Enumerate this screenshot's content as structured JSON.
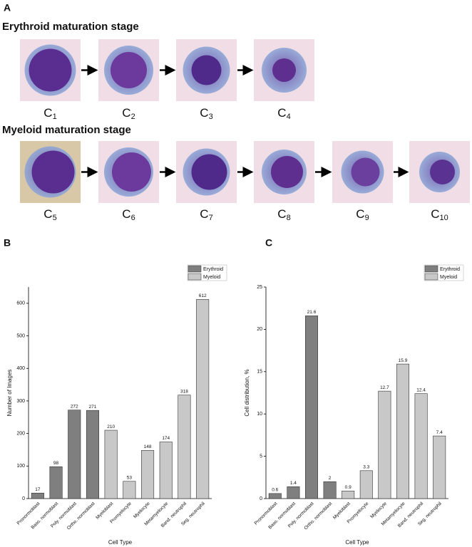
{
  "panel_a": {
    "letter": "A",
    "erythroid": {
      "title": "Erythroid maturation stage",
      "cells": [
        {
          "letter": "C",
          "sub": "1"
        },
        {
          "letter": "C",
          "sub": "2"
        },
        {
          "letter": "C",
          "sub": "3"
        },
        {
          "letter": "C",
          "sub": "4"
        }
      ]
    },
    "myeloid": {
      "title": "Myeloid maturation stage",
      "cells": [
        {
          "letter": "C",
          "sub": "5"
        },
        {
          "letter": "C",
          "sub": "6"
        },
        {
          "letter": "C",
          "sub": "7"
        },
        {
          "letter": "C",
          "sub": "8"
        },
        {
          "letter": "C",
          "sub": "9"
        },
        {
          "letter": "C",
          "sub": "10"
        }
      ]
    }
  },
  "chart_data": [
    {
      "type": "bar",
      "panel": "B",
      "x_label": "Cell Type",
      "y_label": "Number of Images",
      "categories": [
        "Pronormoblast",
        "Baso. normoblast",
        "Poly. normoblast",
        "Ortho. normoblast",
        "Myeloblast",
        "Promyelocyte",
        "Myelocyte",
        "Metamyelocyte",
        "Band. neutrophil",
        "Seg. neutrophil"
      ],
      "series": [
        {
          "name": "Erythroid",
          "color": "#7f7f7f",
          "values": [
            17,
            98,
            272,
            271,
            null,
            null,
            null,
            null,
            null,
            null
          ]
        },
        {
          "name": "Myeloid",
          "color": "#c8c8c8",
          "values": [
            null,
            null,
            null,
            null,
            210,
            53,
            148,
            174,
            318,
            612
          ]
        }
      ],
      "ylim": [
        0,
        650
      ],
      "yticks": [
        0,
        100,
        200,
        300,
        400,
        500,
        600
      ],
      "legend": "top-right"
    },
    {
      "type": "bar",
      "panel": "C",
      "x_label": "Cell Type",
      "y_label": "Cell distribution, %",
      "categories": [
        "Pronormoblast",
        "Baso. normoblast",
        "Poly. normoblast",
        "Ortho. normoblast",
        "Myeloblast",
        "Promyelocyte",
        "Myelocyte",
        "Metamyelocyte",
        "Band. neutrophil",
        "Seg. neutrophil"
      ],
      "series": [
        {
          "name": "Erythroid",
          "color": "#7f7f7f",
          "values": [
            0.6,
            1.4,
            21.6,
            2,
            null,
            null,
            null,
            null,
            null,
            null
          ]
        },
        {
          "name": "Myeloid",
          "color": "#c8c8c8",
          "values": [
            null,
            null,
            null,
            null,
            0.9,
            3.3,
            12.7,
            15.9,
            12.4,
            7.4
          ]
        }
      ],
      "ylim": [
        0,
        25
      ],
      "yticks": [
        0,
        5,
        10,
        15,
        20,
        25
      ],
      "legend": "top-right"
    }
  ]
}
